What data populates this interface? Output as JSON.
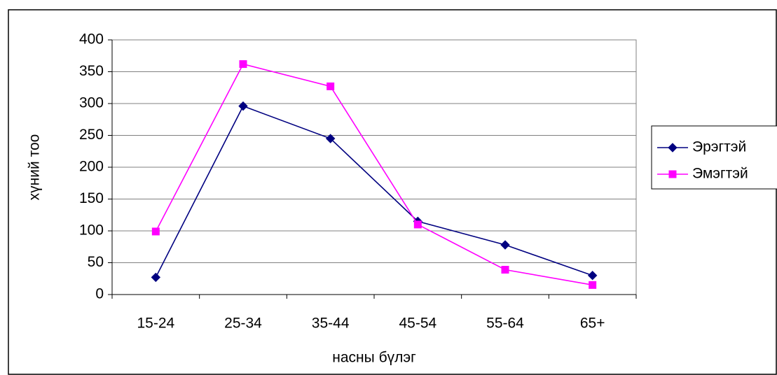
{
  "chart_data": {
    "type": "line",
    "categories": [
      "15-24",
      "25-34",
      "35-44",
      "45-54",
      "55-64",
      "65+"
    ],
    "series": [
      {
        "name": "Эрэгтэй",
        "color": "#000080",
        "marker": "diamond",
        "values": [
          27,
          296,
          245,
          115,
          78,
          30
        ]
      },
      {
        "name": "Эмэгтэй",
        "color": "#ff00ff",
        "marker": "square",
        "values": [
          99,
          362,
          327,
          110,
          39,
          15
        ]
      }
    ],
    "ylim": [
      0,
      400
    ],
    "yticks": [
      0,
      50,
      100,
      150,
      200,
      250,
      300,
      350,
      400
    ],
    "x_label": "насны бүлэг",
    "y_label": "хүний тоо",
    "grid": true,
    "legend": "right"
  }
}
